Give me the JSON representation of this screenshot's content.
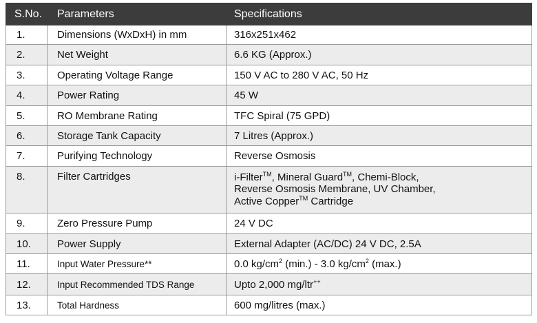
{
  "table": {
    "header": [
      "S.No.",
      "Parameters",
      "Specifications"
    ],
    "rows": [
      {
        "sno": "1.",
        "parameter": "Dimensions (WxDxH) in mm",
        "specification": [
          [
            {
              "text": "316x251x462"
            }
          ]
        ]
      },
      {
        "sno": "2.",
        "parameter": "Net Weight",
        "specification": [
          [
            {
              "text": "6.6 KG (Approx.)"
            }
          ]
        ]
      },
      {
        "sno": "3.",
        "parameter": "Operating Voltage Range",
        "specification": [
          [
            {
              "text": "150 V AC to 280 V AC, 50 Hz"
            }
          ]
        ]
      },
      {
        "sno": "4.",
        "parameter": "Power Rating",
        "specification": [
          [
            {
              "text": "45 W"
            }
          ]
        ]
      },
      {
        "sno": "5.",
        "parameter": "RO Membrane Rating",
        "specification": [
          [
            {
              "text": "TFC Spiral  (75 GPD)"
            }
          ]
        ]
      },
      {
        "sno": "6.",
        "parameter": "Storage Tank Capacity",
        "specification": [
          [
            {
              "text": "7 Litres (Approx.)"
            }
          ]
        ]
      },
      {
        "sno": "7.",
        "parameter": "Purifying Technology",
        "specification": [
          [
            {
              "text": "Reverse Osmosis"
            }
          ]
        ]
      },
      {
        "sno": "8.",
        "parameter": "Filter Cartridges",
        "specification": [
          [
            {
              "text": "i-Filter"
            },
            {
              "sup": "TM"
            },
            {
              "text": ", Mineral Guard"
            },
            {
              "sup": "TM"
            },
            {
              "text": ", Chemi-Block,"
            }
          ],
          [
            {
              "text": "Reverse Osmosis Membrane, UV Chamber,"
            }
          ],
          [
            {
              "text": "Active Copper"
            },
            {
              "sup": "TM"
            },
            {
              "text": " Cartridge"
            }
          ]
        ]
      },
      {
        "sno": "9.",
        "parameter": "Zero Pressure Pump",
        "specification": [
          [
            {
              "text": "24 V DC"
            }
          ]
        ]
      },
      {
        "sno": "10.",
        "parameter": "Power Supply",
        "specification": [
          [
            {
              "text": "External Adapter (AC/DC) 24 V DC, 2.5A"
            }
          ]
        ]
      },
      {
        "sno": "11.",
        "parameter": "Input Water Pressure**",
        "specification": [
          [
            {
              "text": "0.0 kg/cm"
            },
            {
              "sup": "2"
            },
            {
              "text": " (min.) - 3.0 kg/cm"
            },
            {
              "sup": "2"
            },
            {
              "text": " (max.)"
            }
          ]
        ]
      },
      {
        "sno": "12.",
        "parameter": "Input Recommended TDS Range",
        "specification": [
          [
            {
              "text": "Upto 2,000 mg/ltr"
            },
            {
              "sup": "++"
            }
          ]
        ]
      },
      {
        "sno": "13.",
        "parameter": "Total Hardness",
        "specification": [
          [
            {
              "text": "600 mg/litres (max.)"
            }
          ]
        ]
      }
    ]
  }
}
